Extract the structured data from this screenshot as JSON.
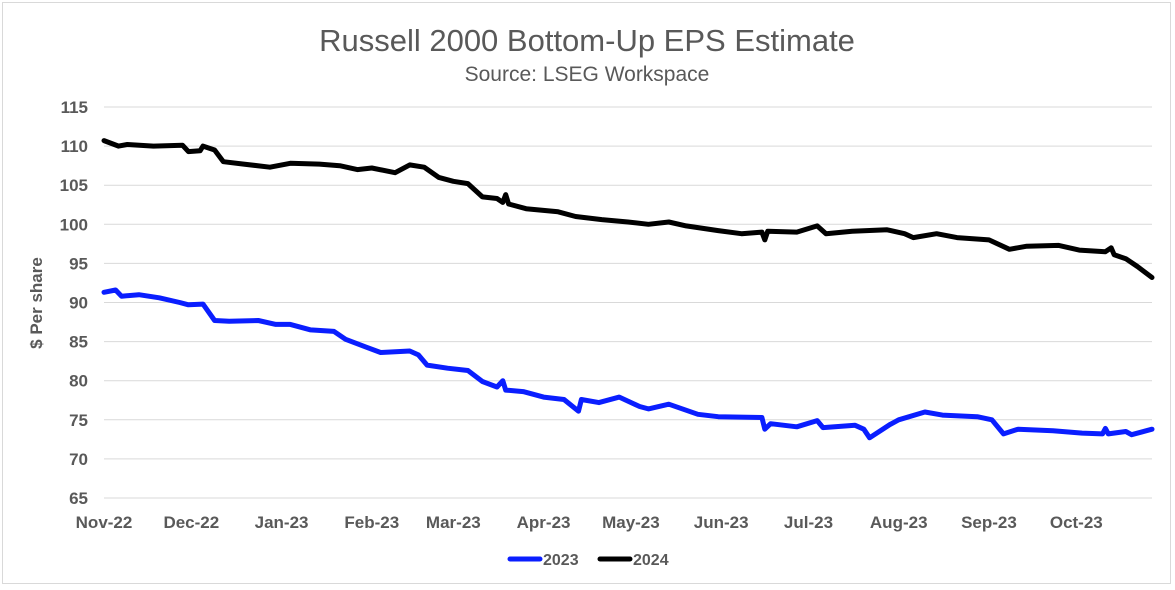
{
  "chart_data": {
    "type": "line",
    "title": "Russell 2000 Bottom-Up EPS Estimate",
    "subtitle": "Source: LSEG Workspace",
    "xlabel": "",
    "ylabel": "$ Per share",
    "ylim": [
      65,
      115
    ],
    "yticks": [
      "65",
      "70",
      "75",
      "80",
      "85",
      "90",
      "95",
      "100",
      "105",
      "110",
      "115"
    ],
    "xlim": [
      "2022-11-01",
      "2023-10-27"
    ],
    "xticks": [
      {
        "label": "Nov-22",
        "date": "2022-11-01"
      },
      {
        "label": "Dec-22",
        "date": "2022-12-01"
      },
      {
        "label": "Jan-23",
        "date": "2023-01-01"
      },
      {
        "label": "Feb-23",
        "date": "2023-02-01"
      },
      {
        "label": "Mar-23",
        "date": "2023-03-01"
      },
      {
        "label": "Apr-23",
        "date": "2023-04-01"
      },
      {
        "label": "May-23",
        "date": "2023-05-01"
      },
      {
        "label": "Jun-23",
        "date": "2023-06-01"
      },
      {
        "label": "Jul-23",
        "date": "2023-07-01"
      },
      {
        "label": "Aug-23",
        "date": "2023-08-01"
      },
      {
        "label": "Sep-23",
        "date": "2023-09-01"
      },
      {
        "label": "Oct-23",
        "date": "2023-10-01"
      }
    ],
    "grid": true,
    "legend": "bottom",
    "series": [
      {
        "name": "2023",
        "color": "#0a1eff",
        "points": [
          [
            "2022-11-01",
            91.3
          ],
          [
            "2022-11-05",
            91.6
          ],
          [
            "2022-11-07",
            90.8
          ],
          [
            "2022-11-13",
            91.0
          ],
          [
            "2022-11-20",
            90.6
          ],
          [
            "2022-11-27",
            90.0
          ],
          [
            "2022-11-30",
            89.7
          ],
          [
            "2022-12-05",
            89.8
          ],
          [
            "2022-12-09",
            87.7
          ],
          [
            "2022-12-14",
            87.6
          ],
          [
            "2022-12-24",
            87.7
          ],
          [
            "2022-12-30",
            87.2
          ],
          [
            "2023-01-04",
            87.2
          ],
          [
            "2023-01-11",
            86.5
          ],
          [
            "2023-01-19",
            86.3
          ],
          [
            "2023-01-23",
            85.3
          ],
          [
            "2023-01-30",
            84.3
          ],
          [
            "2023-02-04",
            83.6
          ],
          [
            "2023-02-14",
            83.8
          ],
          [
            "2023-02-17",
            83.3
          ],
          [
            "2023-02-20",
            82.0
          ],
          [
            "2023-02-27",
            81.6
          ],
          [
            "2023-03-06",
            81.3
          ],
          [
            "2023-03-11",
            79.9
          ],
          [
            "2023-03-16",
            79.2
          ],
          [
            "2023-03-18",
            80.0
          ],
          [
            "2023-03-19",
            78.8
          ],
          [
            "2023-03-25",
            78.6
          ],
          [
            "2023-04-01",
            77.9
          ],
          [
            "2023-04-08",
            77.6
          ],
          [
            "2023-04-13",
            76.1
          ],
          [
            "2023-04-14",
            77.6
          ],
          [
            "2023-04-20",
            77.2
          ],
          [
            "2023-04-27",
            77.9
          ],
          [
            "2023-05-04",
            76.7
          ],
          [
            "2023-05-07",
            76.4
          ],
          [
            "2023-05-14",
            77.0
          ],
          [
            "2023-05-24",
            75.7
          ],
          [
            "2023-05-31",
            75.4
          ],
          [
            "2023-06-15",
            75.3
          ],
          [
            "2023-06-16",
            73.8
          ],
          [
            "2023-06-18",
            74.5
          ],
          [
            "2023-06-27",
            74.1
          ],
          [
            "2023-07-04",
            74.9
          ],
          [
            "2023-07-06",
            74.0
          ],
          [
            "2023-07-17",
            74.3
          ],
          [
            "2023-07-20",
            73.8
          ],
          [
            "2023-07-22",
            72.7
          ],
          [
            "2023-07-29",
            74.4
          ],
          [
            "2023-08-01",
            75.0
          ],
          [
            "2023-08-10",
            76.0
          ],
          [
            "2023-08-16",
            75.6
          ],
          [
            "2023-08-28",
            75.4
          ],
          [
            "2023-09-02",
            75.0
          ],
          [
            "2023-09-06",
            73.2
          ],
          [
            "2023-09-11",
            73.8
          ],
          [
            "2023-09-23",
            73.6
          ],
          [
            "2023-10-03",
            73.3
          ],
          [
            "2023-10-10",
            73.2
          ],
          [
            "2023-10-11",
            73.9
          ],
          [
            "2023-10-12",
            73.2
          ],
          [
            "2023-10-18",
            73.5
          ],
          [
            "2023-10-20",
            73.1
          ],
          [
            "2023-10-27",
            73.8
          ]
        ]
      },
      {
        "name": "2024",
        "color": "#000000",
        "points": [
          [
            "2022-11-01",
            110.7
          ],
          [
            "2022-11-06",
            110.0
          ],
          [
            "2022-11-09",
            110.2
          ],
          [
            "2022-11-18",
            110.0
          ],
          [
            "2022-11-28",
            110.1
          ],
          [
            "2022-11-30",
            109.3
          ],
          [
            "2022-12-04",
            109.4
          ],
          [
            "2022-12-05",
            110.0
          ],
          [
            "2022-12-09",
            109.5
          ],
          [
            "2022-12-12",
            108.0
          ],
          [
            "2022-12-19",
            107.7
          ],
          [
            "2022-12-28",
            107.3
          ],
          [
            "2023-01-04",
            107.8
          ],
          [
            "2023-01-14",
            107.7
          ],
          [
            "2023-01-21",
            107.5
          ],
          [
            "2023-01-27",
            107.0
          ],
          [
            "2023-02-01",
            107.2
          ],
          [
            "2023-02-09",
            106.6
          ],
          [
            "2023-02-14",
            107.6
          ],
          [
            "2023-02-19",
            107.3
          ],
          [
            "2023-02-24",
            106.0
          ],
          [
            "2023-03-01",
            105.5
          ],
          [
            "2023-03-06",
            105.2
          ],
          [
            "2023-03-11",
            103.5
          ],
          [
            "2023-03-16",
            103.3
          ],
          [
            "2023-03-18",
            102.8
          ],
          [
            "2023-03-19",
            103.8
          ],
          [
            "2023-03-20",
            102.6
          ],
          [
            "2023-03-26",
            102.0
          ],
          [
            "2023-04-06",
            101.6
          ],
          [
            "2023-04-12",
            101.0
          ],
          [
            "2023-04-21",
            100.6
          ],
          [
            "2023-04-30",
            100.3
          ],
          [
            "2023-05-07",
            100.0
          ],
          [
            "2023-05-14",
            100.3
          ],
          [
            "2023-05-20",
            99.8
          ],
          [
            "2023-05-31",
            99.2
          ],
          [
            "2023-06-08",
            98.8
          ],
          [
            "2023-06-15",
            99.0
          ],
          [
            "2023-06-16",
            98.0
          ],
          [
            "2023-06-17",
            99.1
          ],
          [
            "2023-06-27",
            99.0
          ],
          [
            "2023-07-04",
            99.8
          ],
          [
            "2023-07-07",
            98.8
          ],
          [
            "2023-07-16",
            99.1
          ],
          [
            "2023-07-28",
            99.3
          ],
          [
            "2023-08-03",
            98.8
          ],
          [
            "2023-08-06",
            98.3
          ],
          [
            "2023-08-14",
            98.8
          ],
          [
            "2023-08-21",
            98.3
          ],
          [
            "2023-09-01",
            98.0
          ],
          [
            "2023-09-08",
            96.8
          ],
          [
            "2023-09-14",
            97.2
          ],
          [
            "2023-09-25",
            97.3
          ],
          [
            "2023-10-02",
            96.7
          ],
          [
            "2023-10-11",
            96.5
          ],
          [
            "2023-10-13",
            97.0
          ],
          [
            "2023-10-14",
            96.1
          ],
          [
            "2023-10-18",
            95.6
          ],
          [
            "2023-10-22",
            94.6
          ],
          [
            "2023-10-27",
            93.2
          ]
        ]
      }
    ]
  }
}
